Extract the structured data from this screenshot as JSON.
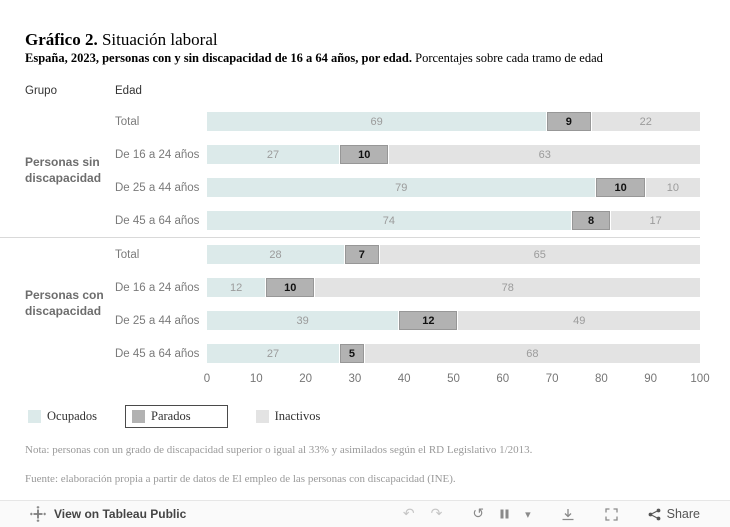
{
  "title": {
    "bold": "Gráfico 2.",
    "regular": " Situación laboral"
  },
  "subtitle": {
    "bold": "España, 2023, personas con y sin discapacidad de 16 a 64 años, por edad.",
    "regular": " Porcentajes sobre cada tramo de edad"
  },
  "headers": {
    "grupo": "Grupo",
    "edad": "Edad"
  },
  "chart_data": {
    "type": "bar",
    "orientation": "horizontal",
    "stacked": true,
    "xlim": [
      0,
      100
    ],
    "x_ticks": [
      0,
      10,
      20,
      30,
      40,
      50,
      60,
      70,
      80,
      90,
      100
    ],
    "series": [
      {
        "key": "ocupados",
        "name": "Ocupados",
        "color": "#dceaea",
        "selected": false
      },
      {
        "key": "parados",
        "name": "Parados",
        "color": "#b2b2b2",
        "selected": true
      },
      {
        "key": "inactivos",
        "name": "Inactivos",
        "color": "#e3e3e3",
        "selected": false
      }
    ],
    "groups": [
      {
        "label": "Personas sin discapacidad",
        "rows": [
          {
            "label": "Total",
            "values": [
              69,
              9,
              22
            ]
          },
          {
            "label": "De 16 a 24 años",
            "values": [
              27,
              10,
              63
            ]
          },
          {
            "label": "De 25 a 44 años",
            "values": [
              79,
              10,
              10
            ]
          },
          {
            "label": "De 45 a 64 años",
            "values": [
              74,
              8,
              17
            ]
          }
        ]
      },
      {
        "label": "Personas con discapacidad",
        "rows": [
          {
            "label": "Total",
            "values": [
              28,
              7,
              65
            ]
          },
          {
            "label": "De 16 a 24 años",
            "values": [
              12,
              10,
              78
            ]
          },
          {
            "label": "De 25 a 44 años",
            "values": [
              39,
              12,
              49
            ]
          },
          {
            "label": "De 45 a 64 años",
            "values": [
              27,
              5,
              68
            ]
          }
        ]
      }
    ]
  },
  "notes": {
    "nota": "Nota: personas con un grado de discapacidad superior o igual al 33% y asimilados según el RD Legislativo 1/2013.",
    "fuente": "Fuente: elaboración propia a partir de datos de El empleo de las personas con discapacidad (INE)."
  },
  "toolbar": {
    "view_label": "View on Tableau Public",
    "share_label": "Share",
    "icons": {
      "undo": "↶",
      "redo": "↷",
      "replay": "↺",
      "caret_down": "▾"
    }
  }
}
